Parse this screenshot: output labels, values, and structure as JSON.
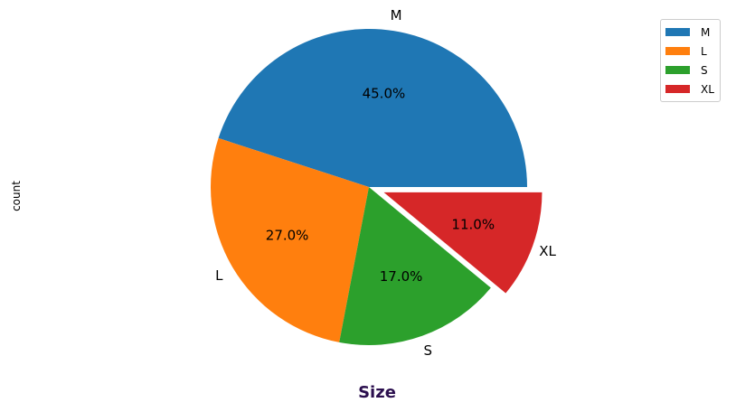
{
  "chart_data": {
    "type": "pie",
    "title": "Size",
    "ylabel": "count",
    "labels": [
      "M",
      "L",
      "S",
      "XL"
    ],
    "values": [
      45.0,
      27.0,
      17.0,
      11.0
    ],
    "percent_labels": [
      "45.0%",
      "27.0%",
      "17.0%",
      "11.0%"
    ],
    "colors": [
      "#1f77b4",
      "#ff7f0e",
      "#2ca02c",
      "#d62728"
    ],
    "explode": [
      0,
      0,
      0,
      0.1
    ],
    "start_angle_deg": 0,
    "direction": "counterclockwise",
    "legend": {
      "position": "top-right",
      "entries": [
        "M",
        "L",
        "S",
        "XL"
      ]
    }
  },
  "title_color": "#2b0f4e"
}
